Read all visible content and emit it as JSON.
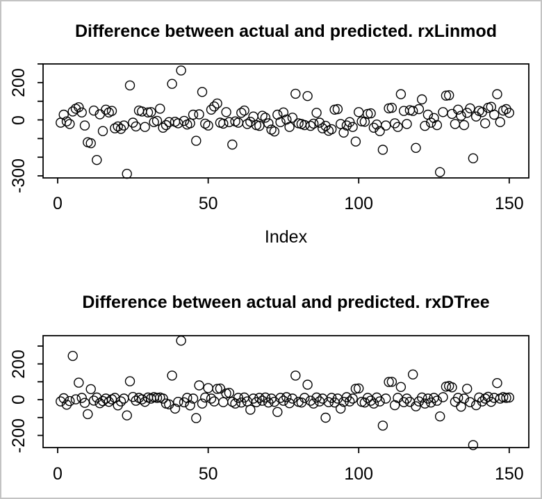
{
  "window": {
    "border_color": "#c3c3c3",
    "background_color": "#ffffff",
    "plot_color": "#000000"
  },
  "chart_data": [
    {
      "type": "scatter",
      "title": "Difference between actual and predicted. rxLinmod",
      "xlabel": "Index",
      "ylabel": "",
      "marker": "open-circle",
      "grid": false,
      "legend": "none",
      "xlim": [
        -4.85,
        156.5
      ],
      "ylim": [
        -311,
        300
      ],
      "x_ticks": [
        0,
        50,
        100,
        150
      ],
      "x_tick_labels": [
        "0",
        "50",
        "100",
        "150"
      ],
      "y_ticks": [
        300,
        200,
        100,
        0,
        -100,
        -200,
        -300
      ],
      "y_tick_labels": [
        "",
        "200",
        "",
        "0",
        "",
        "",
        "-300"
      ],
      "x": [
        1,
        2,
        3,
        4,
        5,
        6,
        7,
        8,
        9,
        10,
        11,
        12,
        13,
        14,
        15,
        16,
        17,
        18,
        19,
        20,
        21,
        22,
        23,
        24,
        25,
        26,
        27,
        28,
        29,
        30,
        31,
        32,
        33,
        34,
        35,
        36,
        37,
        38,
        39,
        40,
        41,
        42,
        43,
        44,
        45,
        46,
        47,
        48,
        49,
        50,
        51,
        52,
        53,
        54,
        55,
        56,
        57,
        58,
        59,
        60,
        61,
        62,
        63,
        64,
        65,
        66,
        67,
        68,
        69,
        70,
        71,
        72,
        73,
        74,
        75,
        76,
        77,
        78,
        79,
        80,
        81,
        82,
        83,
        84,
        85,
        86,
        87,
        88,
        89,
        90,
        91,
        92,
        93,
        94,
        95,
        96,
        97,
        98,
        99,
        100,
        101,
        102,
        103,
        104,
        105,
        106,
        107,
        108,
        109,
        110,
        111,
        112,
        113,
        114,
        115,
        116,
        117,
        118,
        119,
        120,
        121,
        122,
        123,
        124,
        125,
        126,
        127,
        128,
        129,
        130,
        131,
        132,
        133,
        134,
        135,
        136,
        137,
        138,
        139,
        140,
        141,
        142,
        143,
        144,
        145,
        146,
        147,
        148,
        149,
        150
      ],
      "y": [
        -15,
        28,
        -8,
        -22,
        45,
        60,
        68,
        40,
        -30,
        -120,
        -125,
        50,
        -215,
        30,
        -60,
        55,
        40,
        48,
        -45,
        -35,
        -48,
        -30,
        -289,
        185,
        -15,
        -35,
        50,
        45,
        -38,
        40,
        42,
        -12,
        -5,
        60,
        -42,
        -28,
        -12,
        193,
        -10,
        -18,
        265,
        -5,
        -25,
        -18,
        28,
        -112,
        30,
        150,
        -20,
        -30,
        55,
        72,
        88,
        -15,
        -20,
        42,
        -12,
        -132,
        -8,
        -15,
        38,
        50,
        -22,
        -10,
        18,
        -28,
        -32,
        22,
        12,
        -18,
        -52,
        -62,
        28,
        -12,
        40,
        2,
        -38,
        12,
        140,
        -18,
        -22,
        -28,
        128,
        -32,
        -20,
        38,
        -15,
        -45,
        -32,
        -58,
        -50,
        55,
        58,
        -22,
        -68,
        -30,
        -12,
        -38,
        -116,
        42,
        -8,
        -10,
        32,
        35,
        -42,
        -25,
        -60,
        -160,
        -30,
        62,
        65,
        -18,
        -38,
        138,
        48,
        -22,
        52,
        48,
        -150,
        58,
        110,
        -32,
        28,
        -15,
        10,
        -28,
        -280,
        42,
        130,
        132,
        32,
        -22,
        55,
        22,
        -28,
        38,
        62,
        -206,
        18,
        48,
        42,
        -18,
        65,
        70,
        28,
        138,
        -12,
        50,
        58,
        38
      ]
    },
    {
      "type": "scatter",
      "title": "Difference between actual and predicted. rxDTree",
      "xlabel": "",
      "ylabel": "",
      "marker": "open-circle",
      "grid": false,
      "legend": "none",
      "xlim": [
        -4.85,
        156.5
      ],
      "ylim": [
        -268,
        358
      ],
      "x_ticks": [
        0,
        50,
        100,
        150
      ],
      "x_tick_labels": [
        "0",
        "50",
        "100",
        "150"
      ],
      "y_ticks": [
        300,
        200,
        100,
        0,
        -100,
        -200
      ],
      "y_tick_labels": [
        "",
        "200",
        "",
        "0",
        "",
        "-200"
      ],
      "x": [
        1,
        2,
        3,
        4,
        5,
        6,
        7,
        8,
        9,
        10,
        11,
        12,
        13,
        14,
        15,
        16,
        17,
        18,
        19,
        20,
        21,
        22,
        23,
        24,
        25,
        26,
        27,
        28,
        29,
        30,
        31,
        32,
        33,
        34,
        35,
        36,
        37,
        38,
        39,
        40,
        41,
        42,
        43,
        44,
        45,
        46,
        47,
        48,
        49,
        50,
        51,
        52,
        53,
        54,
        55,
        56,
        57,
        58,
        59,
        60,
        61,
        62,
        63,
        64,
        65,
        66,
        67,
        68,
        69,
        70,
        71,
        72,
        73,
        74,
        75,
        76,
        77,
        78,
        79,
        80,
        81,
        82,
        83,
        84,
        85,
        86,
        87,
        88,
        89,
        90,
        91,
        92,
        93,
        94,
        95,
        96,
        97,
        98,
        99,
        100,
        101,
        102,
        103,
        104,
        105,
        106,
        107,
        108,
        109,
        110,
        111,
        112,
        113,
        114,
        115,
        116,
        117,
        118,
        119,
        120,
        121,
        122,
        123,
        124,
        125,
        126,
        127,
        128,
        129,
        130,
        131,
        132,
        133,
        134,
        135,
        136,
        137,
        138,
        139,
        140,
        141,
        142,
        143,
        144,
        145,
        146,
        147,
        148,
        149,
        150
      ],
      "y": [
        -10,
        8,
        -28,
        -8,
        245,
        2,
        95,
        10,
        -18,
        -81,
        59,
        -5,
        12,
        -20,
        -8,
        6,
        -12,
        2,
        10,
        -32,
        -10,
        6,
        -88,
        103,
        15,
        -6,
        10,
        2,
        -12,
        12,
        6,
        14,
        10,
        12,
        6,
        -22,
        -26,
        135,
        -50,
        -12,
        330,
        -15,
        10,
        -32,
        6,
        -103,
        80,
        -22,
        12,
        65,
        6,
        -10,
        60,
        62,
        -14,
        35,
        38,
        -12,
        -22,
        10,
        -16,
        12,
        -10,
        -56,
        6,
        -14,
        10,
        -6,
        12,
        -16,
        6,
        -12,
        -69,
        10,
        -6,
        14,
        -20,
        6,
        135,
        -12,
        -16,
        10,
        84,
        -6,
        -22,
        12,
        -10,
        6,
        -101,
        -14,
        10,
        -16,
        6,
        -50,
        -12,
        14,
        -10,
        6,
        61,
        63,
        -12,
        -16,
        10,
        -6,
        -22,
        12,
        -10,
        -145,
        6,
        99,
        100,
        -31,
        10,
        71,
        -14,
        6,
        -12,
        141,
        -37,
        -10,
        12,
        -22,
        6,
        -16,
        10,
        -6,
        -94,
        14,
        73,
        76,
        69,
        -12,
        10,
        -39,
        6,
        61,
        -14,
        -254,
        -31,
        12,
        -10,
        6,
        16,
        -12,
        10,
        93,
        6,
        14,
        10,
        12
      ]
    }
  ]
}
